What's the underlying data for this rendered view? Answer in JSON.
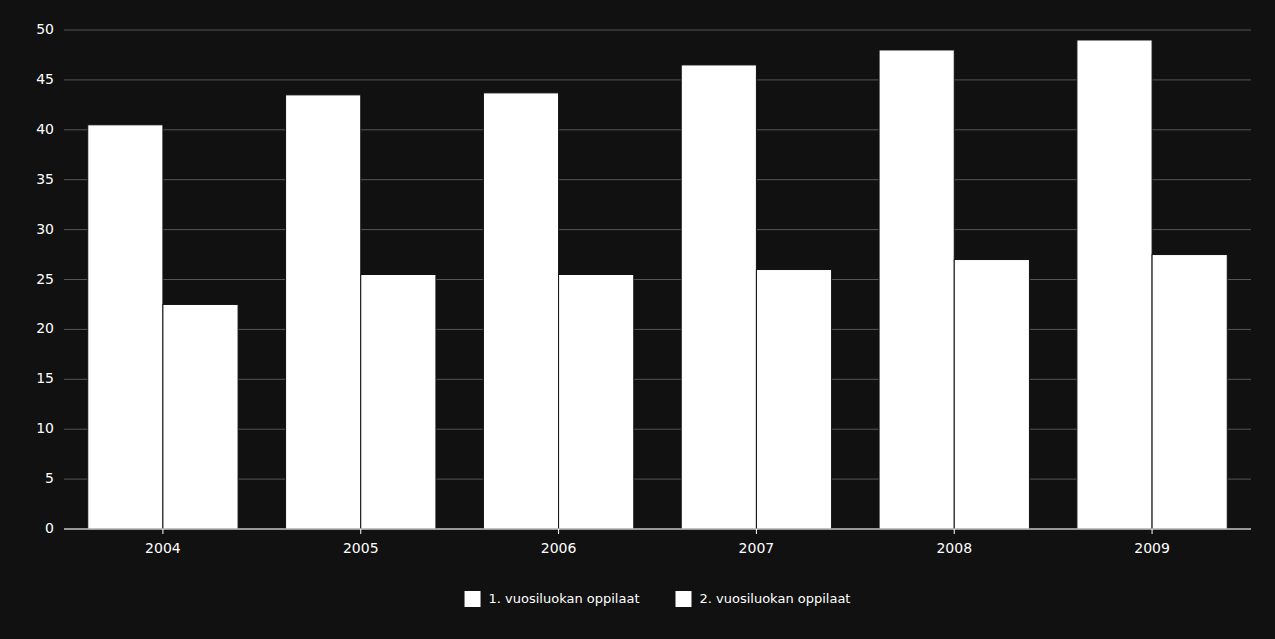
{
  "chart_data": {
    "type": "bar",
    "categories": [
      "2004",
      "2005",
      "2006",
      "2007",
      "2008",
      "2009"
    ],
    "series": [
      {
        "name": "1. vuosiluokan oppilaat",
        "color": "#ffffff",
        "values": [
          40.5,
          43.5,
          43.7,
          46.5,
          48.0,
          49.0
        ]
      },
      {
        "name": "2. vuosiluokan oppilaat",
        "color": "#ffffff",
        "values": [
          22.5,
          25.5,
          25.5,
          26.0,
          27.0,
          27.5
        ]
      }
    ],
    "ylim": [
      0,
      50
    ],
    "yticks": [
      0,
      5,
      10,
      15,
      20,
      25,
      30,
      35,
      40,
      45,
      50
    ],
    "grid": true,
    "legend": "bottom"
  }
}
